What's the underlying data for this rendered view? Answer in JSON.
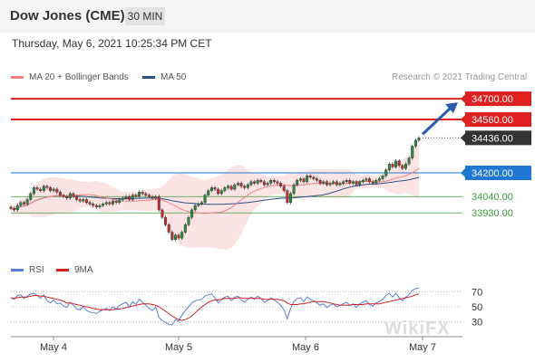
{
  "header": {
    "title": "Dow Jones (CME)",
    "timeframe": "30 MIN"
  },
  "datetime": "Thursday, May 6, 2021 10:25:34 PM CET",
  "legend": {
    "ma20": {
      "label": "MA 20 + Bollinger Bands",
      "color": "#f08080"
    },
    "ma50": {
      "label": "MA 50",
      "color": "#2c4f8c"
    },
    "rsi": {
      "label": "RSI",
      "color": "#5b7fd6"
    },
    "ma9": {
      "label": "9MA",
      "color": "#d42020"
    }
  },
  "copyright": "Research © 2021 Trading Central",
  "watermark": "WikiFX",
  "chart_data": {
    "type": "candlestick",
    "x_labels": [
      "May 4",
      "May 5",
      "May 6",
      "May 7"
    ],
    "price_ylim": [
      33730,
      34780
    ],
    "levels": [
      {
        "value": 34700.0,
        "label": "34700.00",
        "kind": "resistance",
        "color": "#e02020"
      },
      {
        "value": 34560.0,
        "label": "34560.00",
        "kind": "resistance",
        "color": "#e02020"
      },
      {
        "value": 34436.0,
        "label": "34436.00",
        "kind": "current",
        "color": "#333333"
      },
      {
        "value": 34200.0,
        "label": "34200.00",
        "kind": "pivot",
        "color": "#1e78d2"
      },
      {
        "value": 34040.0,
        "label": "34040.00",
        "kind": "support",
        "color": "#3a9b3a"
      },
      {
        "value": 33930.0,
        "label": "33930.00",
        "kind": "support",
        "color": "#3a9b3a"
      }
    ],
    "closes": [
      33960,
      33950,
      33980,
      34000,
      33990,
      34020,
      34060,
      34100,
      34090,
      34080,
      34110,
      34100,
      34080,
      34090,
      34070,
      34050,
      34040,
      34030,
      34060,
      34040,
      34020,
      34010,
      34020,
      34000,
      33990,
      33980,
      33970,
      33980,
      33990,
      34000,
      33990,
      34010,
      34000,
      34020,
      34030,
      34040,
      34020,
      34050,
      34040,
      34070,
      34060,
      34050,
      34040,
      34030,
      34040,
      33950,
      33900,
      33850,
      33800,
      33750,
      33780,
      33760,
      33800,
      33850,
      33900,
      33950,
      33980,
      33990,
      34000,
      34050,
      34080,
      34100,
      34090,
      34060,
      34080,
      34100,
      34110,
      34090,
      34120,
      34130,
      34110,
      34100,
      34120,
      34140,
      34130,
      34150,
      34140,
      34120,
      34130,
      34150,
      34140,
      34130,
      34110,
      34080,
      34000,
      34060,
      34120,
      34150,
      34160,
      34140,
      34180,
      34170,
      34160,
      34150,
      34130,
      34140,
      34120,
      34130,
      34140,
      34120,
      34130,
      34140,
      34150,
      34130,
      34140,
      34120,
      34140,
      34150,
      34160,
      34140,
      34130,
      34150,
      34160,
      34180,
      34220,
      34260,
      34240,
      34280,
      34250,
      34230,
      34260,
      34300,
      34380,
      34420,
      34436
    ],
    "rsi": {
      "ylim": [
        20,
        80
      ],
      "levels": [
        70,
        50,
        30
      ],
      "rsi_values": [
        62,
        60,
        65,
        66,
        61,
        64,
        67,
        68,
        65,
        61,
        66,
        58,
        55,
        59,
        54,
        55,
        51,
        49,
        56,
        52,
        47,
        46,
        50,
        45,
        43,
        42,
        41,
        44,
        46,
        48,
        45,
        50,
        47,
        52,
        54,
        56,
        50,
        57,
        53,
        60,
        56,
        52,
        48,
        45,
        50,
        36,
        32,
        29,
        27,
        26,
        33,
        31,
        39,
        45,
        50,
        55,
        58,
        59,
        60,
        64,
        66,
        67,
        62,
        55,
        60,
        63,
        64,
        58,
        63,
        64,
        59,
        56,
        60,
        63,
        60,
        64,
        61,
        56,
        58,
        62,
        59,
        56,
        52,
        46,
        34,
        48,
        57,
        61,
        62,
        57,
        63,
        60,
        58,
        55,
        52,
        54,
        49,
        52,
        54,
        50,
        52,
        54,
        56,
        52,
        54,
        49,
        54,
        56,
        58,
        53,
        51,
        55,
        57,
        60,
        65,
        68,
        63,
        68,
        62,
        58,
        63,
        66,
        72,
        74,
        75
      ],
      "ma9_values": [
        62,
        61,
        62,
        63,
        63,
        63,
        64,
        65,
        65,
        64,
        64,
        63,
        62,
        61,
        60,
        59,
        57,
        55,
        55,
        54,
        53,
        52,
        51,
        50,
        49,
        48,
        47,
        46,
        46,
        46,
        46,
        46,
        47,
        47,
        48,
        49,
        50,
        51,
        52,
        53,
        54,
        54,
        54,
        53,
        52,
        50,
        47,
        44,
        41,
        38,
        35,
        33,
        32,
        33,
        35,
        38,
        42,
        46,
        50,
        53,
        56,
        58,
        59,
        59,
        60,
        61,
        61,
        61,
        61,
        62,
        62,
        61,
        61,
        61,
        61,
        61,
        61,
        60,
        60,
        60,
        60,
        60,
        59,
        58,
        55,
        53,
        53,
        53,
        54,
        54,
        55,
        56,
        57,
        57,
        57,
        57,
        56,
        55,
        54,
        53,
        52,
        52,
        52,
        52,
        53,
        53,
        53,
        53,
        54,
        54,
        54,
        54,
        54,
        55,
        56,
        57,
        58,
        59,
        60,
        61,
        62,
        63,
        64,
        66,
        67
      ]
    }
  }
}
